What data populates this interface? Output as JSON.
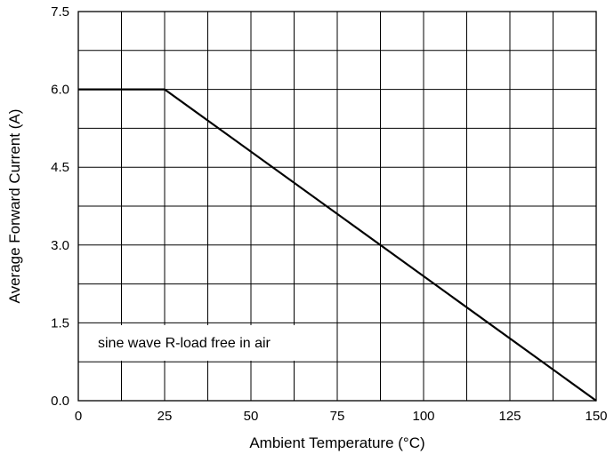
{
  "chart_data": {
    "type": "line",
    "title": "",
    "xlabel": "Ambient Temperature (°C)",
    "ylabel": "Average Forward Current (A)",
    "xlim": [
      0,
      150
    ],
    "ylim": [
      0,
      7.5
    ],
    "xticks": [
      0,
      25,
      50,
      75,
      100,
      125,
      150
    ],
    "yticks": [
      0.0,
      1.5,
      3.0,
      4.5,
      6.0,
      7.5
    ],
    "xtick_labels": [
      "0",
      "25",
      "50",
      "75",
      "100",
      "125",
      "150"
    ],
    "ytick_labels": [
      "0.0",
      "1.5",
      "3.0",
      "4.5",
      "6.0",
      "7.5"
    ],
    "grid": true,
    "x_grid_step": 12.5,
    "y_grid_step": 0.75,
    "series": [
      {
        "x": [
          0,
          25,
          150
        ],
        "y": [
          6.0,
          6.0,
          0.0
        ],
        "color": "#000000"
      }
    ],
    "annotation": "sine wave R-load free in air"
  }
}
